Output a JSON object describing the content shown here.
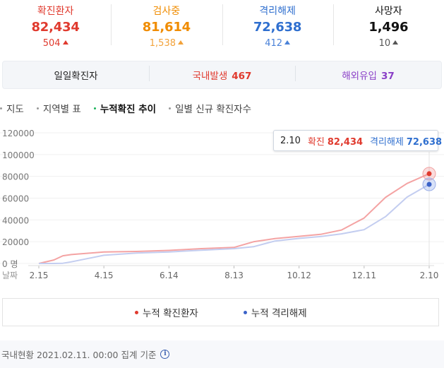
{
  "stats": [
    {
      "label": "확진환자",
      "value": "82,434",
      "change": "504",
      "color": "#e03a2e"
    },
    {
      "label": "검사중",
      "value": "81,614",
      "change": "1,538",
      "color": "#f08c00"
    },
    {
      "label": "격리해제",
      "value": "72,638",
      "change": "412",
      "color": "#2f6fcf"
    },
    {
      "label": "사망자",
      "value": "1,496",
      "change": "10",
      "color": "#111111"
    }
  ],
  "daily": {
    "label": "일일확진자",
    "domestic_label": "국내발생",
    "domestic_value": "467",
    "overseas_label": "해외유입",
    "overseas_value": "37"
  },
  "tabs": [
    {
      "label": "지도",
      "active": false
    },
    {
      "label": "지역별 표",
      "active": false
    },
    {
      "label": "누적확진 추이",
      "active": true
    },
    {
      "label": "일별 신규 확진자수",
      "active": false
    }
  ],
  "chart_data": {
    "type": "line",
    "ylim": [
      0,
      120000
    ],
    "yticks": [
      "120000",
      "100000",
      "80000",
      "60000",
      "40000",
      "20000",
      "0 명"
    ],
    "xlabel": "날짜",
    "xticks": [
      "2.15",
      "4.15",
      "6.14",
      "8.13",
      "10.12",
      "12.11",
      "2.10"
    ],
    "series": [
      {
        "name": "누적 확진환자",
        "color": "#f4a3a3",
        "x": [
          "2.15",
          "2.29",
          "3.07",
          "3.15",
          "4.15",
          "5.15",
          "6.14",
          "7.14",
          "8.13",
          "8.31",
          "9.20",
          "10.12",
          "11.01",
          "11.20",
          "12.11",
          "12.31",
          "1.20",
          "2.10"
        ],
        "values": [
          28,
          3150,
          7100,
          8200,
          10600,
          11000,
          12000,
          13600,
          14700,
          19900,
          22900,
          24900,
          26700,
          30700,
          41700,
          60700,
          73500,
          82434
        ]
      },
      {
        "name": "누적 격리해제",
        "color": "#c3cdf0",
        "x": [
          "2.15",
          "2.29",
          "3.07",
          "3.15",
          "4.15",
          "5.15",
          "6.14",
          "7.14",
          "8.13",
          "8.31",
          "9.20",
          "10.12",
          "11.01",
          "11.20",
          "12.11",
          "12.31",
          "1.20",
          "2.10"
        ],
        "values": [
          10,
          20,
          200,
          1500,
          7500,
          9600,
          10600,
          12100,
          13600,
          15400,
          20600,
          23000,
          24700,
          27200,
          31000,
          43000,
          61000,
          72638
        ]
      }
    ]
  },
  "tooltip": {
    "date": "2.10",
    "confirmed_label": "확진",
    "confirmed_value": "82,434",
    "released_label": "격리해제",
    "released_value": "72,638"
  },
  "legend": {
    "confirmed_label": "누적 확진환자",
    "released_label": "누적 격리해제",
    "confirmed_color": "#e03a2e",
    "released_color": "#3a62c8"
  },
  "footer": {
    "text": "국내현황 2021.02.11. 00:00 집계 기준",
    "icon": "info-icon"
  }
}
